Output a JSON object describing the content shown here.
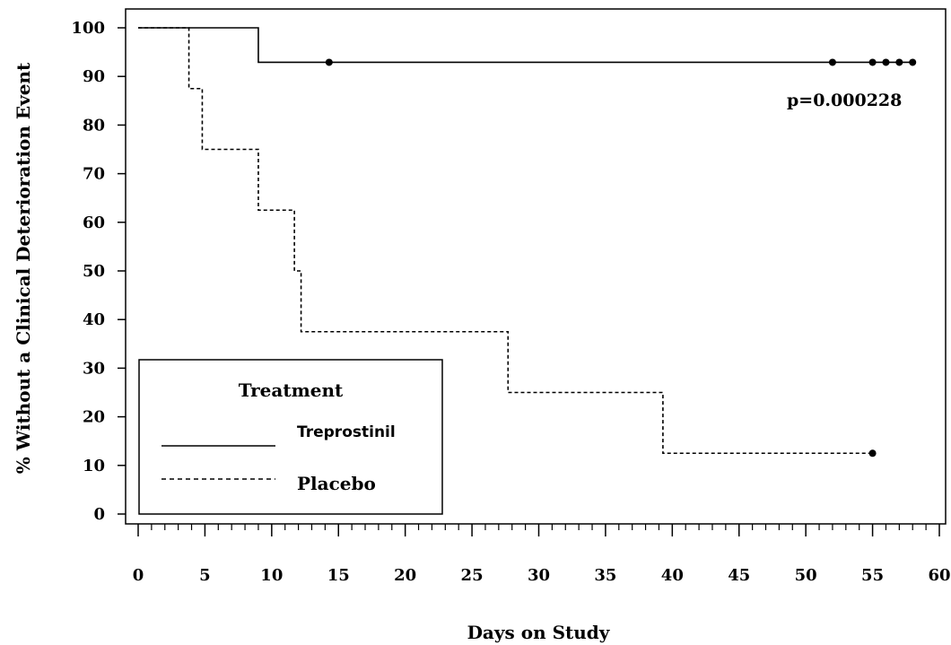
{
  "chart_data": {
    "type": "line",
    "subtype": "step-survival",
    "title": "",
    "xlabel": "Days on Study",
    "ylabel": "% Without a Clinical Deterioration Event",
    "xlim": [
      0,
      60
    ],
    "ylim": [
      0,
      100
    ],
    "xticks": [
      0,
      5,
      10,
      15,
      20,
      25,
      30,
      35,
      40,
      45,
      50,
      55,
      60
    ],
    "yticks": [
      0,
      10,
      20,
      30,
      40,
      50,
      60,
      70,
      80,
      90,
      100
    ],
    "x_minor_step": 1,
    "grid": false,
    "annotation": "p=0.000228",
    "legend": {
      "title": "Treatment",
      "placement": "bottom-left",
      "entries": [
        "Treprostinil",
        "Placebo"
      ]
    },
    "series": [
      {
        "name": "Treprostinil",
        "line_style": "solid",
        "steps": [
          [
            0,
            100
          ],
          [
            9,
            92.9
          ],
          [
            58.2,
            92.9
          ]
        ],
        "censored": [
          [
            14.3,
            92.9
          ],
          [
            52,
            92.9
          ],
          [
            55,
            92.9
          ],
          [
            56,
            92.9
          ],
          [
            57,
            92.9
          ],
          [
            58,
            92.9
          ]
        ]
      },
      {
        "name": "Placebo",
        "line_style": "dashed",
        "steps": [
          [
            0,
            100
          ],
          [
            3.8,
            87.5
          ],
          [
            4.8,
            75
          ],
          [
            9,
            62.5
          ],
          [
            11.7,
            50
          ],
          [
            12.2,
            37.5
          ],
          [
            27.7,
            25
          ],
          [
            39.3,
            12.5
          ],
          [
            55,
            12.5
          ]
        ],
        "censored": [
          [
            55,
            12.5
          ]
        ]
      }
    ]
  }
}
